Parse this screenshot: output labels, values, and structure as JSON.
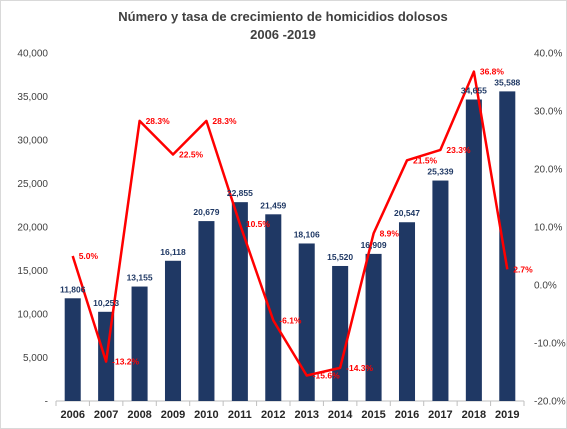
{
  "chart_data": {
    "type": "bar",
    "title": "Número y tasa de crecimiento de homicidios dolosos",
    "subtitle": "2006 -2019",
    "categories": [
      "2006",
      "2007",
      "2008",
      "2009",
      "2010",
      "2011",
      "2012",
      "2013",
      "2014",
      "2015",
      "2016",
      "2017",
      "2018",
      "2019"
    ],
    "series": [
      {
        "type": "bar",
        "axis": "left",
        "color": "#1f3864",
        "values": [
          11806,
          10253,
          13155,
          16118,
          20679,
          22855,
          21459,
          18106,
          15520,
          16909,
          20547,
          25339,
          34655,
          35588
        ],
        "labels": [
          "11,806",
          "10,253",
          "13,155",
          "16,118",
          "20,679",
          "22,855",
          "21,459",
          "18,106",
          "15,520",
          "16,909",
          "20,547",
          "25,339",
          "34,655",
          "35,588"
        ]
      },
      {
        "type": "line",
        "axis": "right",
        "color": "#ff0000",
        "values": [
          5.0,
          -13.2,
          28.3,
          22.5,
          28.3,
          10.5,
          -6.1,
          -15.6,
          -14.3,
          8.9,
          21.5,
          23.3,
          36.8,
          2.7
        ],
        "labels": [
          "5.0%",
          "-13.2%",
          "28.3%",
          "22.5%",
          "28.3%",
          "10.5%",
          "-6.1%",
          "-15.6%",
          "-14.3%",
          "8.9%",
          "21.5%",
          "23.3%",
          "36.8%",
          "2.7%"
        ]
      }
    ],
    "ylim": [
      0,
      40000
    ],
    "y_ticks": [
      "-",
      "5,000",
      "10,000",
      "15,000",
      "20,000",
      "25,000",
      "30,000",
      "35,000",
      "40,000"
    ],
    "y2lim": [
      -20,
      40
    ],
    "y2_ticks": [
      "-20.0%",
      "-10.0%",
      "0.0%",
      "10.0%",
      "20.0%",
      "30.0%",
      "40.0%"
    ],
    "grid": false,
    "legend": "none"
  }
}
